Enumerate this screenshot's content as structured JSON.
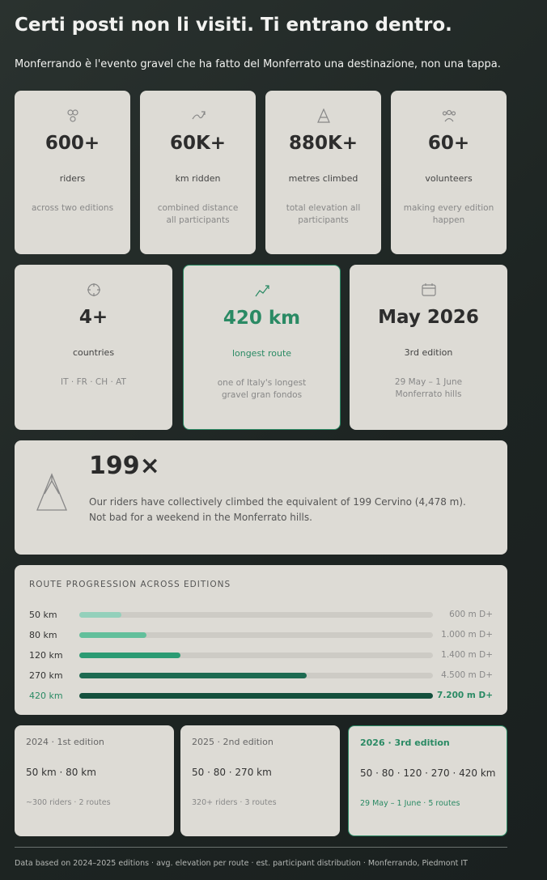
{
  "header": {
    "title": "Certi posti non li visiti. Ti entrano dentro.",
    "subtitle": "Monferrando è l'evento gravel che ha fatto del Monferrato una destinazione, non una tappa."
  },
  "stats": [
    {
      "value": "600+",
      "label": "riders",
      "desc": "across two editions"
    },
    {
      "value": "60K+",
      "label": "km ridden",
      "desc": "combined distance all participants"
    },
    {
      "value": "880K+",
      "label": "metres climbed",
      "desc": "total elevation all participants"
    },
    {
      "value": "60+",
      "label": "volunteers",
      "desc": "making every edition happen"
    }
  ],
  "stats2": [
    {
      "value": "4+",
      "label": "countries",
      "desc": "IT · FR · CH · AT"
    },
    {
      "value": "420 km",
      "label": "longest route",
      "desc": "one of Italy's longest gravel gran fondos"
    },
    {
      "value": "May 2026",
      "label": "3rd edition",
      "desc": "29 May – 1 June Monferrato hills"
    }
  ],
  "highlight": {
    "value": "199×",
    "lines": [
      "Our riders have collectively climbed the equivalent of 199 Cervino (4,478 m).",
      "Not bad for a weekend in the Monferrato hills."
    ]
  },
  "routes": {
    "title": "ROUTE PROGRESSION ACROSS EDITIONS",
    "rows": [
      {
        "label": "50 km",
        "km": 50,
        "elevation": "600 m D+",
        "color": "#93d0bb"
      },
      {
        "label": "80 km",
        "km": 80,
        "elevation": "1.000 m D+",
        "color": "#62bf9b"
      },
      {
        "label": "120 km",
        "km": 120,
        "elevation": "1.400 m D+",
        "color": "#2b9b73"
      },
      {
        "label": "270 km",
        "km": 270,
        "elevation": "4.500 m D+",
        "color": "#1d6a51"
      },
      {
        "label": "420 km",
        "km": 420,
        "elevation": "7.200 m D+",
        "color": "#14503d"
      }
    ]
  },
  "editions": [
    {
      "title": "2024 · 1st edition",
      "routes": "50 km · 80 km",
      "meta": "~300 riders · 2 routes"
    },
    {
      "title": "2025 · 2nd edition",
      "routes": "50 · 80 · 270 km",
      "meta": "320+ riders · 3 routes"
    },
    {
      "title": "2026 · 3rd edition",
      "routes": "50 · 80 · 120 · 270 · 420 km",
      "meta": "29 May – 1 June · 5 routes"
    }
  ],
  "footer": "Data based on 2024–2025 editions · avg. elevation per route · est. participant distribution · Monferrando, Piedmont IT"
}
